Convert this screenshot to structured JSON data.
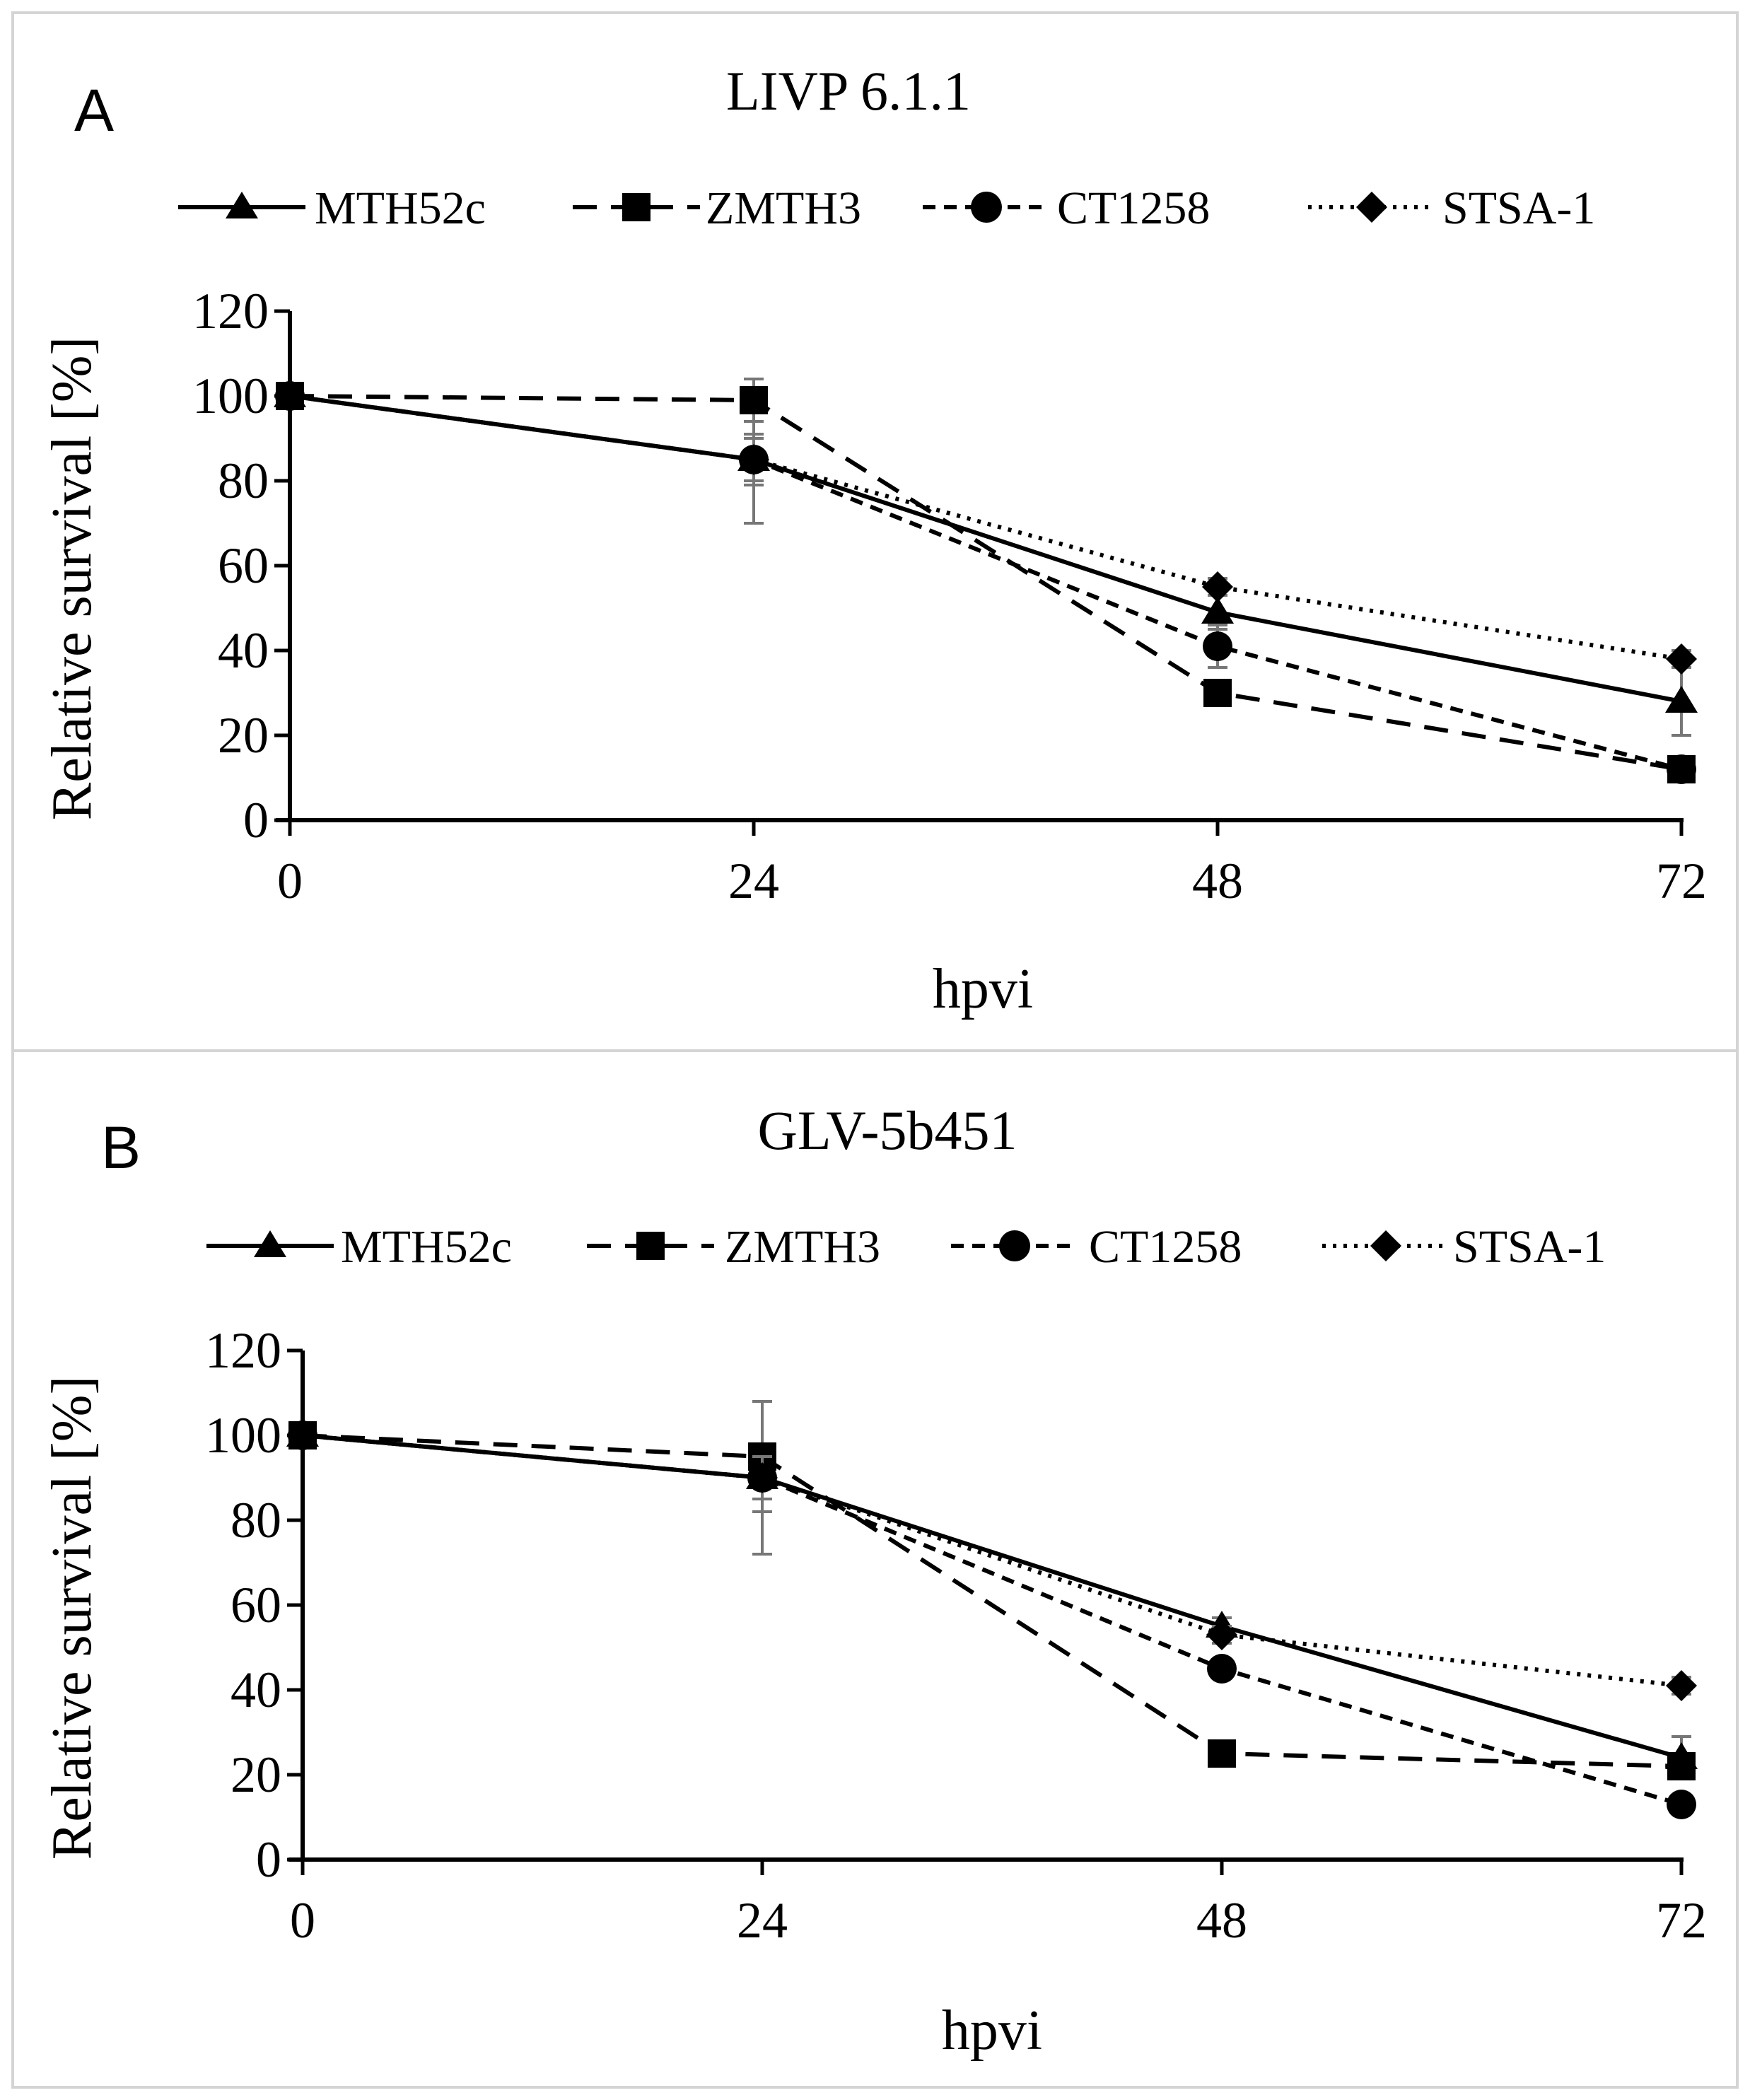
{
  "chart_data": [
    {
      "panel": "A",
      "type": "line",
      "title": "LIVP 6.1.1",
      "xlabel": "hpvi",
      "ylabel": "Relative survival [%]",
      "x": [
        0,
        24,
        48,
        72
      ],
      "x_ticks": [
        "0",
        "24",
        "48",
        "72"
      ],
      "ylim": [
        0,
        120
      ],
      "y_ticks": [
        "0",
        "20",
        "40",
        "60",
        "80",
        "100",
        "120"
      ],
      "grid": false,
      "legend_position": "top",
      "series": [
        {
          "name": "MTH52c",
          "marker": "triangle",
          "dash": "solid",
          "values": [
            100,
            85,
            49,
            28
          ],
          "errors": [
            0,
            15,
            4,
            8
          ]
        },
        {
          "name": "ZMTH3",
          "marker": "square",
          "dash": "long-dash",
          "values": [
            100,
            99,
            30,
            12
          ],
          "errors": [
            0,
            5,
            2,
            2
          ]
        },
        {
          "name": "CT1258",
          "marker": "circle",
          "dash": "short-dash",
          "values": [
            100,
            85,
            41,
            12
          ],
          "errors": [
            0,
            6,
            5,
            2
          ]
        },
        {
          "name": "STSA-1",
          "marker": "diamond",
          "dash": "dotted",
          "values": [
            100,
            85,
            55,
            38
          ],
          "errors": [
            0,
            5,
            2,
            2
          ]
        }
      ]
    },
    {
      "panel": "B",
      "type": "line",
      "title": "GLV-5b451",
      "xlabel": "hpvi",
      "ylabel": "Relative survival [%]",
      "x": [
        0,
        24,
        48,
        72
      ],
      "x_ticks": [
        "0",
        "24",
        "48",
        "72"
      ],
      "ylim": [
        0,
        120
      ],
      "y_ticks": [
        "0",
        "20",
        "40",
        "60",
        "80",
        "100",
        "120"
      ],
      "grid": false,
      "legend_position": "top",
      "series": [
        {
          "name": "MTH52c",
          "marker": "triangle",
          "dash": "solid",
          "values": [
            100,
            90,
            55,
            24
          ],
          "errors": [
            0,
            18,
            2,
            5
          ]
        },
        {
          "name": "ZMTH3",
          "marker": "square",
          "dash": "long-dash",
          "values": [
            100,
            95,
            25,
            22
          ],
          "errors": [
            0,
            13,
            2,
            3
          ]
        },
        {
          "name": "CT1258",
          "marker": "circle",
          "dash": "short-dash",
          "values": [
            100,
            90,
            45,
            13
          ],
          "errors": [
            0,
            5,
            2,
            2
          ]
        },
        {
          "name": "STSA-1",
          "marker": "diamond",
          "dash": "dotted",
          "values": [
            100,
            90,
            53,
            41
          ],
          "errors": [
            0,
            5,
            2,
            2
          ]
        }
      ]
    }
  ]
}
